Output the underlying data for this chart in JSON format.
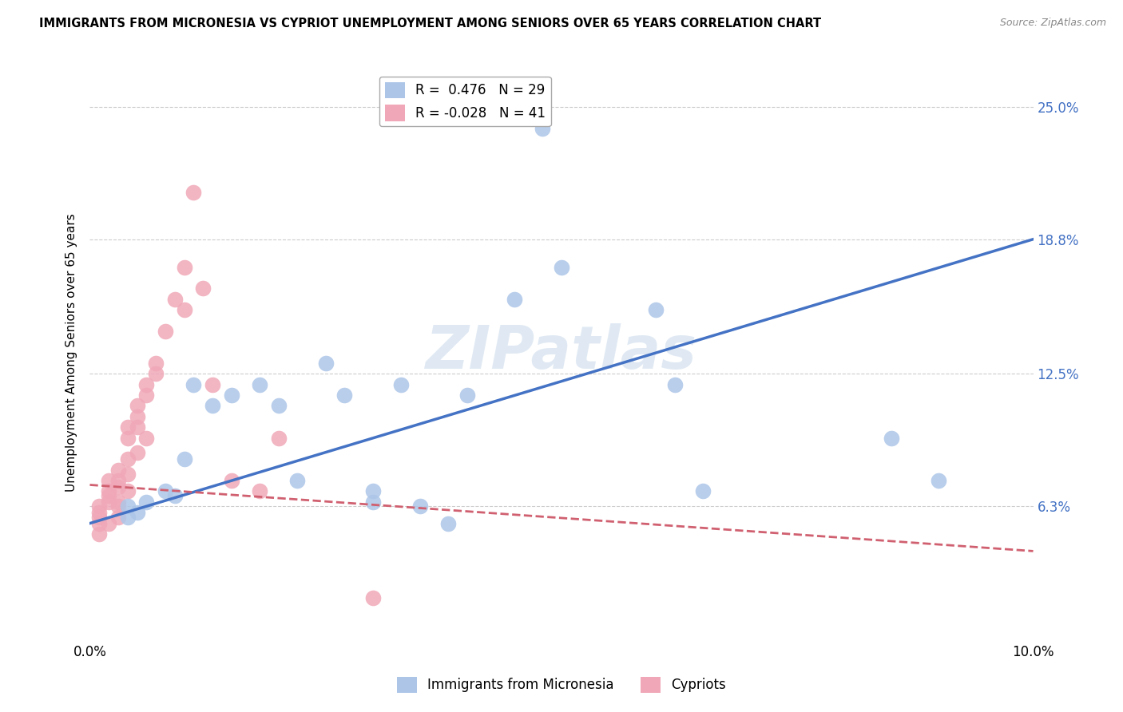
{
  "title": "IMMIGRANTS FROM MICRONESIA VS CYPRIOT UNEMPLOYMENT AMONG SENIORS OVER 65 YEARS CORRELATION CHART",
  "source": "Source: ZipAtlas.com",
  "ylabel": "Unemployment Among Seniors over 65 years",
  "xlim": [
    0,
    0.1
  ],
  "ylim": [
    0.0,
    0.27
  ],
  "ytick_values": [
    0.063,
    0.125,
    0.188,
    0.25
  ],
  "right_axis_labels": [
    "6.3%",
    "12.5%",
    "18.8%",
    "25.0%"
  ],
  "legend_r1": "R =  0.476",
  "legend_n1": "N = 29",
  "legend_r2": "R = -0.028",
  "legend_n2": "N = 41",
  "blue_color": "#adc6e8",
  "pink_color": "#f0a8b8",
  "blue_line_color": "#4472c4",
  "pink_line_color": "#d06070",
  "watermark": "ZIPatlas",
  "micronesia_x": [
    0.004,
    0.004,
    0.005,
    0.006,
    0.008,
    0.009,
    0.01,
    0.011,
    0.013,
    0.015,
    0.018,
    0.02,
    0.022,
    0.025,
    0.027,
    0.03,
    0.03,
    0.033,
    0.035,
    0.038,
    0.04,
    0.045,
    0.048,
    0.05,
    0.06,
    0.062,
    0.065,
    0.085,
    0.09
  ],
  "micronesia_y": [
    0.063,
    0.058,
    0.06,
    0.065,
    0.07,
    0.068,
    0.085,
    0.12,
    0.11,
    0.115,
    0.12,
    0.11,
    0.075,
    0.13,
    0.115,
    0.065,
    0.07,
    0.12,
    0.063,
    0.055,
    0.115,
    0.16,
    0.24,
    0.175,
    0.155,
    0.12,
    0.07,
    0.095,
    0.075
  ],
  "cypriot_x": [
    0.001,
    0.001,
    0.001,
    0.001,
    0.001,
    0.002,
    0.002,
    0.002,
    0.002,
    0.002,
    0.003,
    0.003,
    0.003,
    0.003,
    0.003,
    0.003,
    0.004,
    0.004,
    0.004,
    0.004,
    0.004,
    0.005,
    0.005,
    0.005,
    0.005,
    0.006,
    0.006,
    0.006,
    0.007,
    0.007,
    0.008,
    0.009,
    0.01,
    0.01,
    0.011,
    0.012,
    0.013,
    0.015,
    0.018,
    0.02,
    0.03
  ],
  "cypriot_y": [
    0.063,
    0.06,
    0.058,
    0.055,
    0.05,
    0.07,
    0.068,
    0.075,
    0.065,
    0.055,
    0.063,
    0.08,
    0.075,
    0.072,
    0.065,
    0.058,
    0.1,
    0.095,
    0.085,
    0.078,
    0.07,
    0.11,
    0.105,
    0.1,
    0.088,
    0.12,
    0.115,
    0.095,
    0.13,
    0.125,
    0.145,
    0.16,
    0.175,
    0.155,
    0.21,
    0.165,
    0.12,
    0.075,
    0.07,
    0.095,
    0.02
  ],
  "blue_line_x": [
    0.0,
    0.1
  ],
  "blue_line_y": [
    0.055,
    0.188
  ],
  "pink_line_x": [
    0.0,
    0.1
  ],
  "pink_line_y": [
    0.073,
    0.042
  ]
}
